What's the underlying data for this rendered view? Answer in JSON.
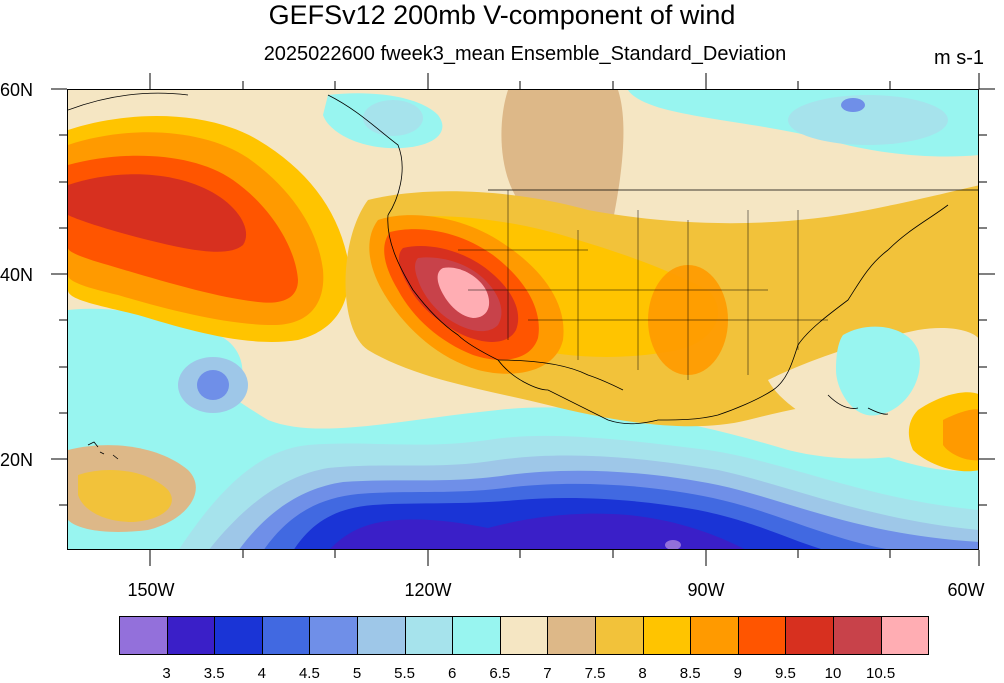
{
  "title": "GEFSv12 200mb V-component of wind",
  "subtitle": "2025022600 fweek3_mean Ensemble_Standard_Deviation",
  "units": "m s-1",
  "lat_labels": [
    "60N",
    "40N",
    "20N"
  ],
  "lon_labels": [
    "150W",
    "120W",
    "90W",
    "60W"
  ],
  "colorbar": {
    "labels": [
      "3",
      "3.5",
      "4",
      "4.5",
      "5",
      "5.5",
      "6",
      "6.5",
      "7",
      "7.5",
      "8",
      "8.5",
      "9",
      "9.5",
      "10",
      "10.5"
    ],
    "colors": [
      "#9370db",
      "#3a1fc8",
      "#1a34d6",
      "#4169e1",
      "#6f8fe8",
      "#9ec7e8",
      "#a6e3ec",
      "#98f5f0",
      "#f5e6c3",
      "#ddb888",
      "#f2c23a",
      "#ffc400",
      "#ff9a00",
      "#ff5500",
      "#d7301f",
      "#c8424a",
      "#ffadb3"
    ]
  },
  "map": {
    "projection": "cylindrical equidistant",
    "lon_range": [
      -159,
      -60
    ],
    "lat_range": [
      10,
      60
    ],
    "features": [
      "continental outlines",
      "US state boundaries",
      "Canada/Mexico borders"
    ]
  },
  "colors": {
    "frame": "#000000",
    "background": "#ffffff"
  }
}
